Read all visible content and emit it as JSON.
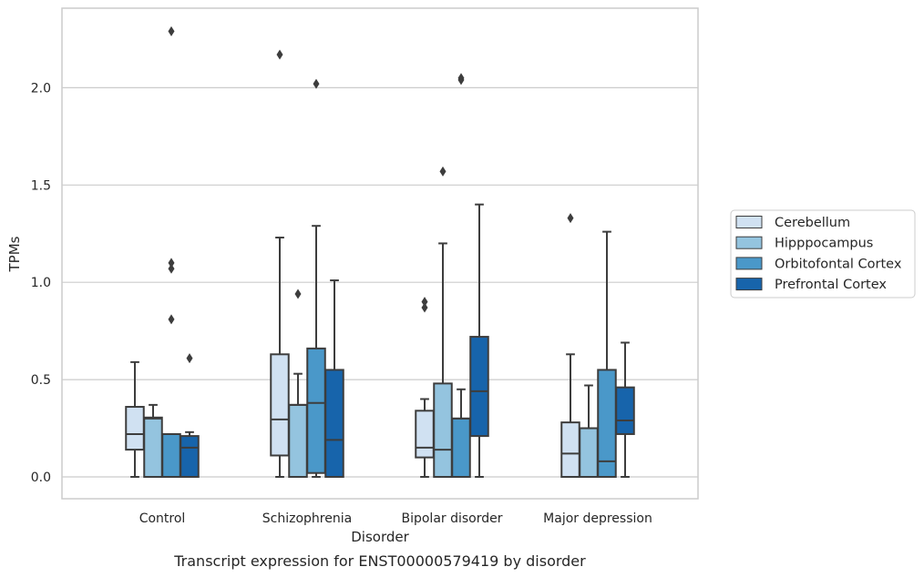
{
  "chart_data": {
    "type": "box",
    "title": "Transcript expression for ENST00000579419 by disorder",
    "xlabel": "Disorder",
    "ylabel": "TPMs",
    "ylim": [
      -0.11,
      2.41
    ],
    "yticks": [
      0.0,
      0.5,
      1.0,
      1.5,
      2.0
    ],
    "ytick_labels": [
      "0.0",
      "0.5",
      "1.0",
      "1.5",
      "2.0"
    ],
    "grid": "horizontal",
    "legend_position": "right",
    "categories": [
      "Control",
      "Schizophrenia",
      "Bipolar disorder",
      "Major depression"
    ],
    "series": [
      {
        "name": "Cerebellum",
        "color": "#d0e1f2",
        "boxes": [
          {
            "whisker_low": 0.0,
            "q1": 0.14,
            "median": 0.22,
            "q3": 0.36,
            "whisker_high": 0.59,
            "outliers": []
          },
          {
            "whisker_low": 0.0,
            "q1": 0.11,
            "median": 0.295,
            "q3": 0.63,
            "whisker_high": 1.23,
            "outliers": [
              2.17
            ]
          },
          {
            "whisker_low": 0.0,
            "q1": 0.1,
            "median": 0.15,
            "q3": 0.34,
            "whisker_high": 0.4,
            "outliers": [
              0.87,
              0.9
            ]
          },
          {
            "whisker_low": 0.0,
            "q1": 0.0,
            "median": 0.12,
            "q3": 0.28,
            "whisker_high": 0.63,
            "outliers": [
              1.33
            ]
          }
        ]
      },
      {
        "name": "Hipppocampus",
        "color": "#94c4df",
        "boxes": [
          {
            "whisker_low": 0.0,
            "q1": 0.0,
            "median": 0.3,
            "q3": 0.305,
            "whisker_high": 0.37,
            "outliers": []
          },
          {
            "whisker_low": 0.0,
            "q1": 0.0,
            "median": 0.37,
            "q3": 0.37,
            "whisker_high": 0.53,
            "outliers": [
              0.94
            ]
          },
          {
            "whisker_low": 0.0,
            "q1": 0.0,
            "median": 0.14,
            "q3": 0.48,
            "whisker_high": 1.2,
            "outliers": [
              1.57
            ]
          },
          {
            "whisker_low": 0.0,
            "q1": 0.0,
            "median": 0.25,
            "q3": 0.25,
            "whisker_high": 0.47,
            "outliers": []
          }
        ]
      },
      {
        "name": "Orbitofontal Cortex",
        "color": "#4a98c9",
        "boxes": [
          {
            "whisker_low": 0.0,
            "q1": 0.0,
            "median": 0.22,
            "q3": 0.22,
            "whisker_high": 0.22,
            "outliers": [
              0.81,
              1.07,
              1.1,
              2.29
            ]
          },
          {
            "whisker_low": 0.0,
            "q1": 0.02,
            "median": 0.38,
            "q3": 0.66,
            "whisker_high": 1.29,
            "outliers": [
              2.02
            ]
          },
          {
            "whisker_low": 0.0,
            "q1": 0.0,
            "median": 0.3,
            "q3": 0.3,
            "whisker_high": 0.45,
            "outliers": [
              2.04,
              2.05
            ]
          },
          {
            "whisker_low": 0.0,
            "q1": 0.0,
            "median": 0.08,
            "q3": 0.55,
            "whisker_high": 1.26,
            "outliers": []
          }
        ]
      },
      {
        "name": "Prefrontal Cortex",
        "color": "#1764ab",
        "boxes": [
          {
            "whisker_low": 0.0,
            "q1": 0.0,
            "median": 0.15,
            "q3": 0.21,
            "whisker_high": 0.23,
            "outliers": [
              0.61
            ]
          },
          {
            "whisker_low": 0.0,
            "q1": 0.0,
            "median": 0.19,
            "q3": 0.55,
            "whisker_high": 1.01,
            "outliers": []
          },
          {
            "whisker_low": 0.0,
            "q1": 0.21,
            "median": 0.44,
            "q3": 0.72,
            "whisker_high": 1.4,
            "outliers": []
          },
          {
            "whisker_low": 0.0,
            "q1": 0.22,
            "median": 0.29,
            "q3": 0.46,
            "whisker_high": 0.69,
            "outliers": []
          }
        ]
      }
    ]
  }
}
